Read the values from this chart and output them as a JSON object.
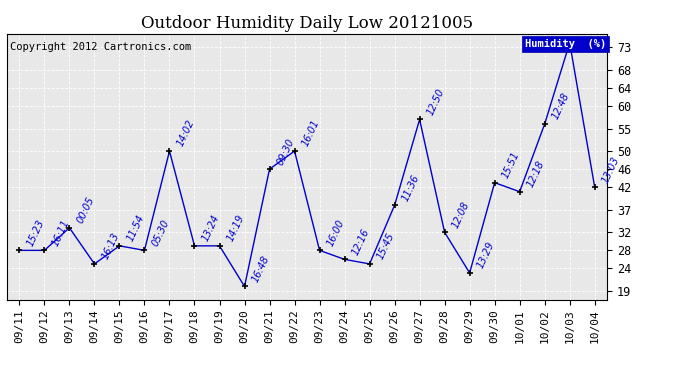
{
  "title": "Outdoor Humidity Daily Low 20121005",
  "copyright": "Copyright 2012 Cartronics.com",
  "legend_label": "Humidity  (%)",
  "x_labels": [
    "09/11",
    "09/12",
    "09/13",
    "09/14",
    "09/15",
    "09/16",
    "09/17",
    "09/18",
    "09/19",
    "09/20",
    "09/21",
    "09/22",
    "09/23",
    "09/24",
    "09/25",
    "09/26",
    "09/27",
    "09/28",
    "09/29",
    "09/30",
    "10/01",
    "10/02",
    "10/03",
    "10/04"
  ],
  "y_values": [
    28,
    28,
    33,
    25,
    29,
    28,
    50,
    29,
    29,
    20,
    46,
    50,
    28,
    26,
    25,
    38,
    57,
    32,
    23,
    43,
    41,
    56,
    74,
    42
  ],
  "point_labels": [
    "15:23",
    "16:11",
    "00:05",
    "16:13",
    "11:54",
    "05:30",
    "14:02",
    "13:24",
    "14:19",
    "16:48",
    "09:30",
    "16:01",
    "16:00",
    "12:16",
    "15:45",
    "11:36",
    "12:50",
    "12:08",
    "13:29",
    "15:51",
    "12:18",
    "12:48",
    "",
    "13:03"
  ],
  "ylim": [
    17,
    76
  ],
  "yticks": [
    19,
    24,
    28,
    32,
    37,
    42,
    46,
    50,
    55,
    60,
    64,
    68,
    73
  ],
  "line_color": "#0000cc",
  "marker_color": "#000000",
  "plot_bg_color": "#e8e8e8",
  "fig_bg_color": "#ffffff",
  "grid_color": "#ffffff",
  "title_fontsize": 12,
  "label_fontsize": 7,
  "tick_fontsize": 8,
  "copyright_fontsize": 7.5
}
